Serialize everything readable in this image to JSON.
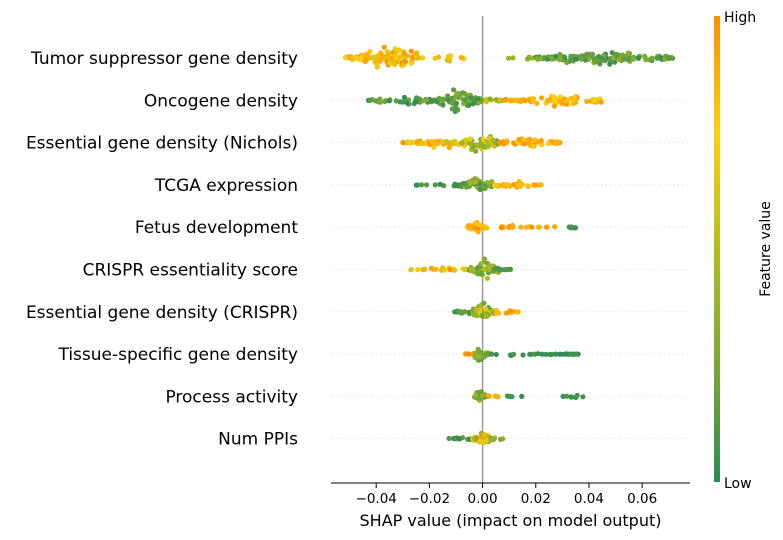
{
  "chart_data": {
    "type": "scatter",
    "subtype": "shap-beeswarm",
    "xlabel": "SHAP value (impact on model output)",
    "xlim": [
      -0.057,
      0.078
    ],
    "x_ticks": [
      -0.04,
      -0.02,
      0.0,
      0.02,
      0.04,
      0.06
    ],
    "x_tick_labels": [
      "−0.04",
      "−0.02",
      "0.00",
      "0.02",
      "0.04",
      "0.06"
    ],
    "features": [
      {
        "name": "Tumor suppressor gene density",
        "clusters": [
          {
            "min": -0.052,
            "max": -0.024,
            "center": -0.034,
            "spread": 12,
            "n": 120,
            "color_low": 0.6,
            "color_high": 1.0
          },
          {
            "min": -0.024,
            "max": -0.004,
            "center": -0.012,
            "spread": 3,
            "n": 14,
            "color_low": 0.55,
            "color_high": 0.95
          },
          {
            "min": 0.008,
            "max": 0.02,
            "center": 0.014,
            "spread": 2,
            "n": 6,
            "color_low": 0.25,
            "color_high": 0.45
          },
          {
            "min": 0.02,
            "max": 0.072,
            "center": 0.046,
            "spread": 7,
            "n": 140,
            "color_low": 0.0,
            "color_high": 0.35
          }
        ]
      },
      {
        "name": "Oncogene density",
        "clusters": [
          {
            "min": -0.044,
            "max": -0.014,
            "center": -0.028,
            "spread": 4,
            "n": 45,
            "color_low": 0.0,
            "color_high": 0.3
          },
          {
            "min": -0.018,
            "max": 0.0,
            "center": -0.01,
            "spread": 14,
            "n": 70,
            "color_low": 0.05,
            "color_high": 0.35
          },
          {
            "min": 0.0,
            "max": 0.008,
            "center": 0.003,
            "spread": 5,
            "n": 12,
            "color_low": 0.3,
            "color_high": 0.6
          },
          {
            "min": 0.008,
            "max": 0.045,
            "center": 0.03,
            "spread": 6,
            "n": 80,
            "color_low": 0.65,
            "color_high": 1.0
          }
        ]
      },
      {
        "name": "Essential gene density (Nichols)",
        "clusters": [
          {
            "min": -0.03,
            "max": -0.008,
            "center": -0.015,
            "spread": 5,
            "n": 60,
            "color_low": 0.55,
            "color_high": 1.0
          },
          {
            "min": -0.008,
            "max": 0.006,
            "center": -0.001,
            "spread": 12,
            "n": 70,
            "color_low": 0.2,
            "color_high": 0.7
          },
          {
            "min": 0.006,
            "max": 0.03,
            "center": 0.016,
            "spread": 6,
            "n": 55,
            "color_low": 0.75,
            "color_high": 1.0
          }
        ]
      },
      {
        "name": "TCGA expression",
        "clusters": [
          {
            "min": -0.025,
            "max": -0.008,
            "center": -0.012,
            "spread": 2,
            "n": 14,
            "color_low": 0.0,
            "color_high": 0.15
          },
          {
            "min": -0.008,
            "max": 0.004,
            "center": -0.002,
            "spread": 10,
            "n": 60,
            "color_low": 0.05,
            "color_high": 0.45
          },
          {
            "min": 0.004,
            "max": 0.023,
            "center": 0.01,
            "spread": 4,
            "n": 35,
            "color_low": 0.75,
            "color_high": 1.0
          }
        ]
      },
      {
        "name": "Fetus development",
        "clusters": [
          {
            "min": -0.006,
            "max": 0.002,
            "center": -0.002,
            "spread": 8,
            "n": 30,
            "color_low": 0.75,
            "color_high": 1.0
          },
          {
            "min": 0.006,
            "max": 0.022,
            "center": 0.012,
            "spread": 2,
            "n": 14,
            "color_low": 0.8,
            "color_high": 1.0
          },
          {
            "min": 0.024,
            "max": 0.028,
            "center": 0.027,
            "spread": 1,
            "n": 3,
            "color_low": 0.8,
            "color_high": 1.0
          },
          {
            "min": 0.032,
            "max": 0.036,
            "center": 0.034,
            "spread": 2,
            "n": 5,
            "color_low": 0.0,
            "color_high": 0.1
          }
        ]
      },
      {
        "name": "CRISPR essentiality score",
        "clusters": [
          {
            "min": -0.029,
            "max": -0.005,
            "center": -0.015,
            "spread": 2,
            "n": 22,
            "color_low": 0.6,
            "color_high": 1.0
          },
          {
            "min": -0.005,
            "max": 0.006,
            "center": 0.001,
            "spread": 10,
            "n": 50,
            "color_low": 0.1,
            "color_high": 0.5
          },
          {
            "min": 0.006,
            "max": 0.011,
            "center": 0.008,
            "spread": 2,
            "n": 8,
            "color_low": 0.0,
            "color_high": 0.15
          }
        ]
      },
      {
        "name": "Essential gene density (CRISPR)",
        "clusters": [
          {
            "min": -0.011,
            "max": -0.003,
            "center": -0.006,
            "spread": 3,
            "n": 14,
            "color_low": 0.0,
            "color_high": 0.2
          },
          {
            "min": -0.004,
            "max": 0.005,
            "center": 0.0,
            "spread": 10,
            "n": 50,
            "color_low": 0.15,
            "color_high": 0.7
          },
          {
            "min": 0.005,
            "max": 0.014,
            "center": 0.008,
            "spread": 3,
            "n": 16,
            "color_low": 0.8,
            "color_high": 1.0
          }
        ]
      },
      {
        "name": "Tissue-specific gene density",
        "clusters": [
          {
            "min": -0.007,
            "max": -0.001,
            "center": -0.003,
            "spread": 2,
            "n": 8,
            "color_low": 0.85,
            "color_high": 1.0
          },
          {
            "min": -0.003,
            "max": 0.003,
            "center": -0.001,
            "spread": 8,
            "n": 30,
            "color_low": 0.1,
            "color_high": 0.5
          },
          {
            "min": 0.003,
            "max": 0.036,
            "center": 0.012,
            "spread": 2,
            "n": 28,
            "color_low": 0.0,
            "color_high": 0.1
          }
        ]
      },
      {
        "name": "Process activity",
        "clusters": [
          {
            "min": -0.003,
            "max": 0.002,
            "center": -0.001,
            "spread": 8,
            "n": 25,
            "color_low": 0.1,
            "color_high": 0.4
          },
          {
            "min": 0.002,
            "max": 0.006,
            "center": 0.004,
            "spread": 2,
            "n": 6,
            "color_low": 0.85,
            "color_high": 1.0
          },
          {
            "min": 0.008,
            "max": 0.017,
            "center": 0.012,
            "spread": 1,
            "n": 5,
            "color_low": 0.0,
            "color_high": 0.1
          },
          {
            "min": 0.03,
            "max": 0.038,
            "center": 0.035,
            "spread": 2,
            "n": 7,
            "color_low": 0.0,
            "color_high": 0.1
          }
        ]
      },
      {
        "name": "Num PPIs",
        "clusters": [
          {
            "min": -0.013,
            "max": -0.003,
            "center": -0.006,
            "spread": 2,
            "n": 14,
            "color_low": 0.0,
            "color_high": 0.2
          },
          {
            "min": -0.004,
            "max": 0.003,
            "center": 0.0,
            "spread": 9,
            "n": 40,
            "color_low": 0.3,
            "color_high": 1.0
          },
          {
            "min": 0.003,
            "max": 0.008,
            "center": 0.005,
            "spread": 2,
            "n": 8,
            "color_low": 0.2,
            "color_high": 0.5
          }
        ]
      }
    ],
    "colorbar": {
      "title": "Feature value",
      "high_label": "High",
      "low_label": "Low",
      "colors": [
        "#2e8b57",
        "#7ca834",
        "#b5bd1e",
        "#fcd10f",
        "#ff8c00"
      ]
    },
    "grid": false,
    "zero_line": true
  }
}
